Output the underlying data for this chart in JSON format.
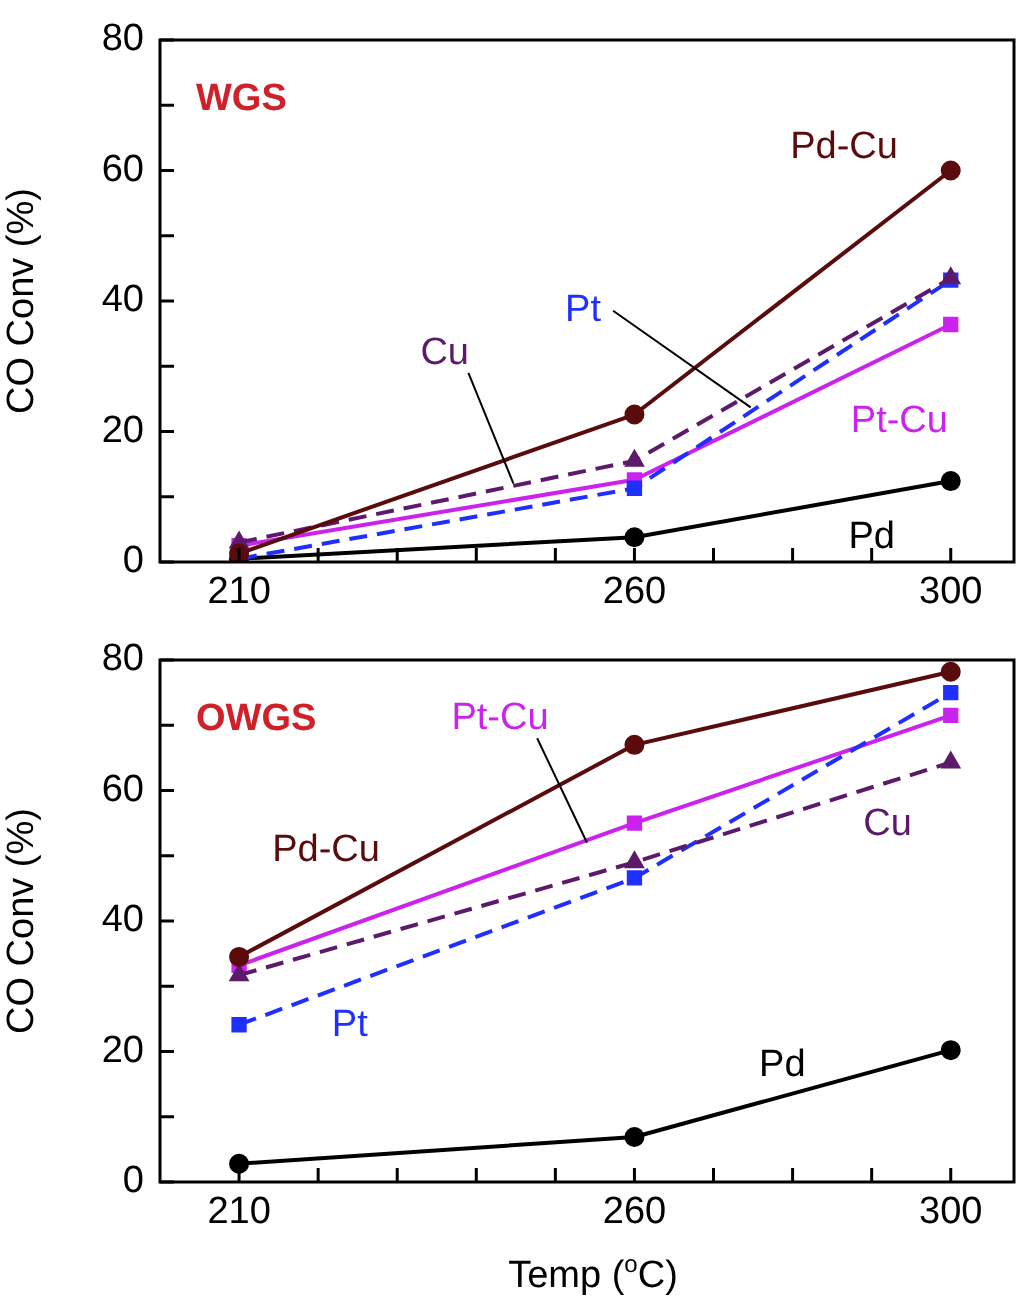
{
  "chart_data": [
    {
      "type": "line",
      "title": "WGS",
      "ylabel": "CO Conv (%)",
      "x": [
        210,
        260,
        300
      ],
      "xlim": [
        200,
        308
      ],
      "xticks": [
        210,
        {
          "value": 220,
          "label": null
        },
        {
          "value": 230,
          "label": null
        },
        {
          "value": 240,
          "label": null
        },
        {
          "value": 250,
          "label": null
        },
        260,
        {
          "value": 270,
          "label": null
        },
        {
          "value": 280,
          "label": null
        },
        {
          "value": 290,
          "label": null
        },
        300
      ],
      "ylim": [
        0,
        80
      ],
      "yticks": [
        0,
        {
          "value": 10,
          "label": null
        },
        20,
        {
          "value": 30,
          "label": null
        },
        40,
        {
          "value": 50,
          "label": null
        },
        60,
        {
          "value": 70,
          "label": null
        },
        80
      ],
      "grid": false,
      "legend": false,
      "series": [
        {
          "name": "Pd-Cu",
          "color": "#5a0b0b",
          "marker": "circle",
          "line_style": "solid",
          "values": [
            1.3,
            22.6,
            60
          ]
        },
        {
          "name": "Cu",
          "color": "#5c1a6b",
          "marker": "triangle",
          "line_style": "dashed",
          "values": [
            3,
            15.5,
            43.5
          ]
        },
        {
          "name": "Pt",
          "color": "#1f2fff",
          "marker": "square",
          "line_style": "dashed",
          "values": [
            0.5,
            11.3,
            43.2
          ]
        },
        {
          "name": "Pt-Cu",
          "color": "#cc22ee",
          "marker": "square",
          "line_style": "solid",
          "values": [
            2.5,
            12.6,
            36.4
          ]
        },
        {
          "name": "Pd",
          "color": "#000000",
          "marker": "circle",
          "line_style": "solid",
          "values": [
            0.5,
            3.8,
            12.4
          ]
        }
      ]
    },
    {
      "type": "line",
      "title": "OWGS",
      "xlabel": "Temp ($^{o}$C)",
      "ylabel": "CO Conv (%)",
      "x": [
        210,
        260,
        300
      ],
      "xlim": [
        200,
        308
      ],
      "xticks": [
        210,
        {
          "value": 220,
          "label": null
        },
        {
          "value": 230,
          "label": null
        },
        {
          "value": 240,
          "label": null
        },
        {
          "value": 250,
          "label": null
        },
        260,
        {
          "value": 270,
          "label": null
        },
        {
          "value": 280,
          "label": null
        },
        {
          "value": 290,
          "label": null
        },
        300
      ],
      "ylim": [
        0,
        80
      ],
      "yticks": [
        0,
        {
          "value": 10,
          "label": null
        },
        20,
        {
          "value": 30,
          "label": null
        },
        40,
        {
          "value": 50,
          "label": null
        },
        60,
        {
          "value": 70,
          "label": null
        },
        80
      ],
      "grid": false,
      "legend": false,
      "series": [
        {
          "name": "Pd-Cu",
          "color": "#5a0b0b",
          "marker": "circle",
          "line_style": "solid",
          "values": [
            34.5,
            67,
            78.2
          ]
        },
        {
          "name": "Cu",
          "color": "#5c1a6b",
          "marker": "triangle",
          "line_style": "dashed",
          "values": [
            31.7,
            49,
            64.3
          ]
        },
        {
          "name": "Pt",
          "color": "#1f2fff",
          "marker": "square",
          "line_style": "dashed",
          "values": [
            24.1,
            46.6,
            75
          ]
        },
        {
          "name": "Pt-Cu",
          "color": "#cc22ee",
          "marker": "square",
          "line_style": "solid",
          "values": [
            33.2,
            55,
            71.5
          ]
        },
        {
          "name": "Pd",
          "color": "#000000",
          "marker": "circle",
          "line_style": "solid",
          "values": [
            2.8,
            6.9,
            20.2
          ]
        }
      ]
    }
  ]
}
